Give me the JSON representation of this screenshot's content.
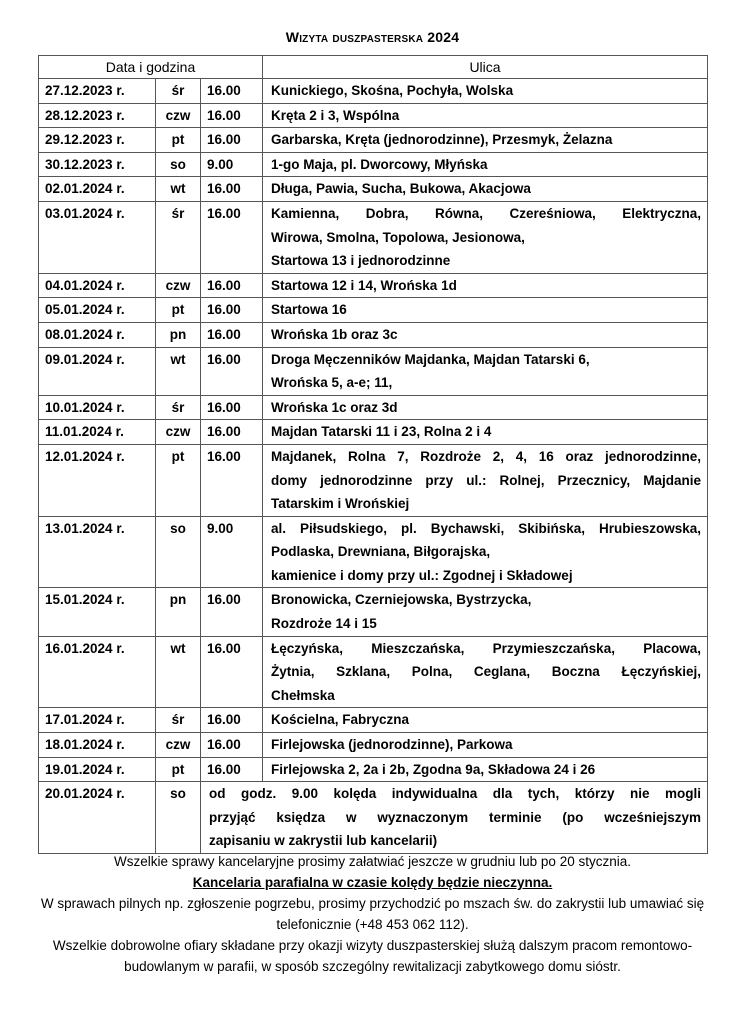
{
  "title": "Wizyta duszpasterska 2024",
  "table": {
    "headers": {
      "date_time": "Data i godzina",
      "street": "Ulica"
    },
    "rows": [
      {
        "date": "27.12.2023 r.",
        "day": "śr",
        "time": "16.00",
        "lines": [
          "Kunickiego, Skośna, Pochyła, Wolska"
        ]
      },
      {
        "date": "28.12.2023 r.",
        "day": "czw",
        "time": "16.00",
        "lines": [
          "Kręta 2 i 3, Wspólna"
        ]
      },
      {
        "date": "29.12.2023 r.",
        "day": "pt",
        "time": "16.00",
        "lines": [
          "Garbarska, Kręta (jednorodzinne), Przesmyk, Żelazna"
        ]
      },
      {
        "date": "30.12.2023 r.",
        "day": "so",
        "time": "9.00",
        "lines": [
          "1-go Maja, pl. Dworcowy, Młyńska"
        ]
      },
      {
        "date": "02.01.2024 r.",
        "day": "wt",
        "time": "16.00",
        "lines": [
          "Długa, Pawia, Sucha, Bukowa, Akacjowa"
        ]
      },
      {
        "date": "03.01.2024 r.",
        "day": "śr",
        "time": "16.00",
        "lines": [
          "Kamienna, Dobra, Równa, Czereśniowa, Elektryczna,",
          "Wirowa, Smolna, Topolowa, Jesionowa,",
          "Startowa 13 i jednorodzinne"
        ]
      },
      {
        "date": "04.01.2024 r.",
        "day": "czw",
        "time": "16.00",
        "lines": [
          "Startowa 12 i 14, Wrońska 1d"
        ]
      },
      {
        "date": "05.01.2024 r.",
        "day": "pt",
        "time": "16.00",
        "lines": [
          "Startowa 16"
        ]
      },
      {
        "date": "08.01.2024 r.",
        "day": "pn",
        "time": "16.00",
        "lines": [
          "Wrońska 1b oraz 3c"
        ]
      },
      {
        "date": "09.01.2024 r.",
        "day": "wt",
        "time": "16.00",
        "lines": [
          "Droga Męczenników Majdanka, Majdan Tatarski 6,",
          "Wrońska 5, a-e; 11,"
        ]
      },
      {
        "date": "10.01.2024 r.",
        "day": "śr",
        "time": "16.00",
        "lines": [
          "Wrońska 1c oraz 3d"
        ]
      },
      {
        "date": "11.01.2024 r.",
        "day": "czw",
        "time": "16.00",
        "lines": [
          "Majdan Tatarski 11 i 23, Rolna 2 i 4"
        ]
      },
      {
        "date": "12.01.2024 r.",
        "day": "pt",
        "time": "16.00",
        "lines": [
          "Majdanek, Rolna 7, Rozdroże 2, 4, 16 oraz jednorodzinne,",
          "domy jednorodzinne przy ul.: Rolnej, Przecznicy, Majdanie",
          "Tatarskim i Wrońskiej"
        ]
      },
      {
        "date": "13.01.2024 r.",
        "day": "so",
        "time": "9.00",
        "lines": [
          "al. Piłsudskiego, pl. Bychawski, Skibińska, Hrubieszowska,",
          "Podlaska, Drewniana, Biłgorajska,",
          "kamienice i domy przy ul.: Zgodnej i Składowej"
        ]
      },
      {
        "date": "15.01.2024 r.",
        "day": "pn",
        "time": "16.00",
        "lines": [
          "Bronowicka, Czerniejowska, Bystrzycka,",
          "Rozdroże 14 i 15"
        ]
      },
      {
        "date": "16.01.2024 r.",
        "day": "wt",
        "time": "16.00",
        "lines": [
          "Łęczyńska, Mieszczańska, Przymieszczańska, Placowa,",
          "Żytnia, Szklana, Polna, Ceglana, Boczna Łęczyńskiej,",
          "Chełmska"
        ]
      },
      {
        "date": "17.01.2024 r.",
        "day": "śr",
        "time": "16.00",
        "lines": [
          "Kościelna, Fabryczna"
        ]
      },
      {
        "date": "18.01.2024 r.",
        "day": "czw",
        "time": "16.00",
        "lines": [
          "Firlejowska (jednorodzinne), Parkowa"
        ]
      },
      {
        "date": "19.01.2024 r.",
        "day": "pt",
        "time": "16.00",
        "lines": [
          "Firlejowska 2, 2a i 2b, Zgodna 9a, Składowa 24 i 26"
        ]
      },
      {
        "date": "20.01.2024 r.",
        "day": "so",
        "time": "",
        "lines": [
          "od godz. 9.00 kolęda indywidualna dla tych, którzy nie mogli",
          "przyjąć księdza w wyznaczonym terminie (po wcześniejszym",
          "zapisaniu w zakrystii lub kancelarii)"
        ]
      }
    ]
  },
  "footer": {
    "line1": "Wszelkie sprawy kancelaryjne prosimy załatwiać jeszcze w grudniu lub po 20 stycznia.",
    "notice": "Kancelaria parafialna w czasie kolędy będzie nieczynna.",
    "line3": "W sprawach pilnych np. zgłoszenie pogrzebu, prosimy przychodzić po mszach św. do zakrystii lub umawiać się telefonicznie (+48 453 062 112).",
    "line4": "Wszelkie dobrowolne ofiary składane przy okazji wizyty duszpasterskiej służą dalszym pracom remontowo-budowlanym w parafii, w sposób szczególny rewitalizacji zabytkowego domu sióstr."
  }
}
